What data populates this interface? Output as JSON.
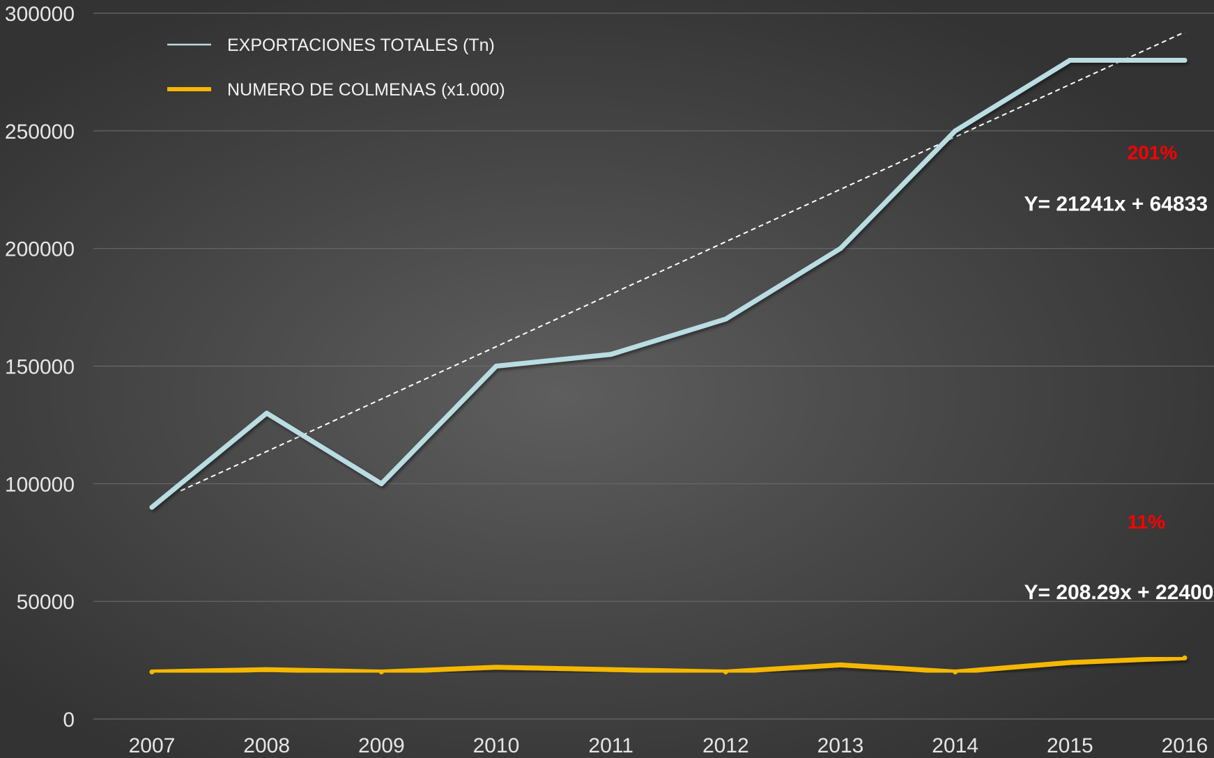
{
  "chart_data": {
    "type": "line",
    "title": "",
    "xlabel": "",
    "ylabel": "",
    "x": [
      2007,
      2008,
      2009,
      2010,
      2011,
      2012,
      2013,
      2014,
      2015,
      2016
    ],
    "ylim": [
      0,
      300000
    ],
    "y_ticks": [
      0,
      50000,
      100000,
      150000,
      200000,
      250000,
      300000
    ],
    "grid": true,
    "legend_position": "top-left",
    "series": [
      {
        "name": "EXPORTACIONES TOTALES (Tn)",
        "color": "#b9dde2",
        "values": [
          90000,
          130000,
          100000,
          150000,
          155000,
          170000,
          200000,
          250000,
          280000,
          280000
        ]
      },
      {
        "name": "NUMERO DE COLMENAS (x1.000)",
        "color": "#f5b800",
        "values": [
          20000,
          21000,
          20000,
          22000,
          21000,
          20000,
          23000,
          20000,
          24000,
          26000
        ]
      }
    ],
    "trendline": {
      "color": "#ffffff",
      "style": "dashed",
      "x_range": [
        2007.25,
        2016
      ],
      "y_range": [
        97000,
        292000
      ]
    },
    "annotations": [
      {
        "text": "201%",
        "x": 2015.5,
        "y": 238000,
        "color": "#ff0000"
      },
      {
        "text": "Y= 21241x + 64833",
        "x": 2014.6,
        "y": 216000,
        "color": "#ffffff"
      },
      {
        "text": "11%",
        "x": 2015.5,
        "y": 81000,
        "color": "#ff0000"
      },
      {
        "text": "Y= 208.29x + 22400",
        "x": 2014.6,
        "y": 51000,
        "color": "#ffffff"
      }
    ],
    "arrows": [
      {
        "x": 2016.55,
        "y_bottom": 228000,
        "y_top": 251000,
        "color": "#ff0000",
        "direction": "up"
      },
      {
        "x": 2016.55,
        "y_bottom": 71000,
        "y_top": 94000,
        "color": "#ff0000",
        "direction": "up"
      }
    ]
  }
}
